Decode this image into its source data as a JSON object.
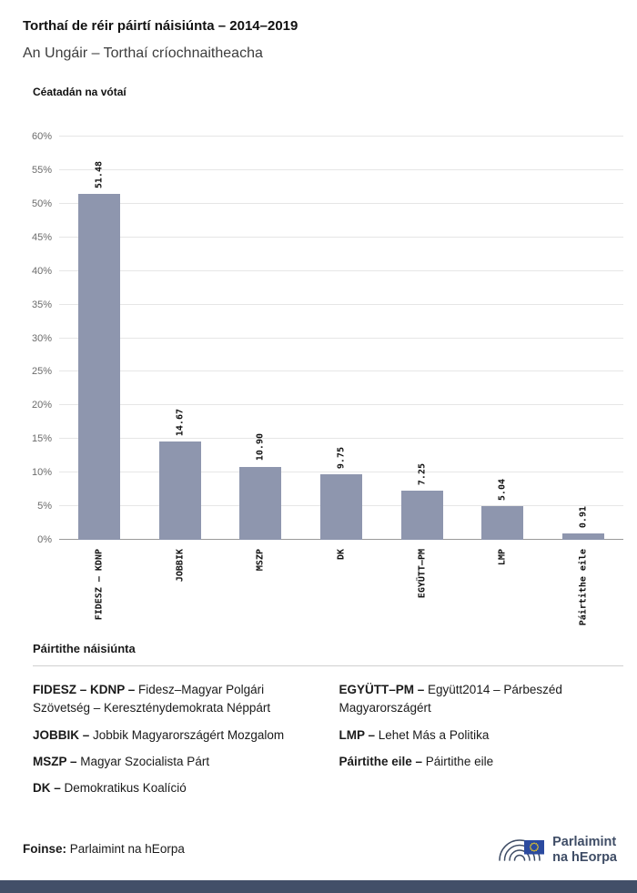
{
  "header": {
    "title": "Torthaí de réir páirtí náisiúnta – 2014–2019",
    "subtitle": "An Ungáir – Torthaí críochnaitheacha"
  },
  "chart_data": {
    "type": "bar",
    "title": "Céatadán na vótaí",
    "xlabel": "",
    "ylabel": "Céatadán na vótaí",
    "categories": [
      "FIDESZ – KDNP",
      "JOBBIK",
      "MSZP",
      "DK",
      "EGYÜTT–PM",
      "LMP",
      "Páirtithe eile"
    ],
    "values": [
      51.48,
      14.67,
      10.9,
      9.75,
      7.25,
      5.04,
      0.91
    ],
    "value_labels": [
      "51.48",
      "14.67",
      "10.90",
      "9.75",
      "7.25",
      "5.04",
      "0.91"
    ],
    "ylim": [
      0,
      60
    ],
    "ytick_step": 5,
    "grid": true,
    "legend_position": "none",
    "bar_color": "#8e96ae"
  },
  "legend": {
    "heading": "Páirtithe náisiúnta",
    "columns": [
      [
        {
          "abbr": "FIDESZ – KDNP –",
          "desc": " Fidesz–Magyar Polgári Szövetség – Kereszténydemokrata Néppárt"
        },
        {
          "abbr": "JOBBIK –",
          "desc": " Jobbik Magyarországért Mozgalom"
        },
        {
          "abbr": "MSZP –",
          "desc": " Magyar Szocialista Párt"
        },
        {
          "abbr": "DK –",
          "desc": " Demokratikus Koalíció"
        }
      ],
      [
        {
          "abbr": "EGYÜTT–PM –",
          "desc": " Együtt2014 – Párbeszéd Magyarországért"
        },
        {
          "abbr": "LMP –",
          "desc": " Lehet Más a Politika"
        },
        {
          "abbr": "Páirtithe eile –",
          "desc": " Páirtithe eile"
        }
      ]
    ]
  },
  "footer": {
    "source_label": "Foinse:",
    "source_value": " Parlaimint na hEorpa",
    "logo_line1": "Parlaimint",
    "logo_line2": "na hEorpa",
    "logo_icon": "ep-hemicycle-eu-flag-icon"
  },
  "colors": {
    "bar": "#8e96ae",
    "bottom_bar": "#424f68",
    "logo_text": "#3f4d66",
    "eu_flag_blue": "#2b4a9f",
    "eu_star_yellow": "#ffd617"
  }
}
